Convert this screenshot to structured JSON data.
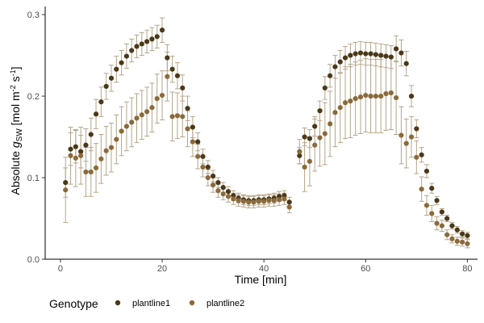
{
  "chart_data": {
    "type": "scatter",
    "xlabel": "Time [min]",
    "ylabel": {
      "prefix": "Absolute ",
      "symbol": "g",
      "symbol_sub": "SW",
      "unit_open": " [mol m",
      "exp1": "-2",
      "unit_mid": " s",
      "exp2": "-1",
      "unit_close": "]"
    },
    "xlim": [
      -3,
      82
    ],
    "ylim": [
      0,
      0.31
    ],
    "xticks": [
      0,
      20,
      40,
      60,
      80
    ],
    "yticks": [
      0.0,
      0.1,
      0.2,
      0.3
    ],
    "ytick_labels": [
      "0.0",
      "0.1",
      "0.2",
      "0.3"
    ],
    "grid": false,
    "legend": {
      "title": "Genotype",
      "placement": "bottom",
      "entries": [
        "plantline1",
        "plantline2"
      ]
    },
    "colors": {
      "plantline1": "#4a3818",
      "plantline2": "#8b6a3a",
      "errorbar": "#b5a589",
      "axis": "#000000"
    },
    "x": [
      1,
      2,
      3,
      4,
      5,
      6,
      7,
      8,
      9,
      10,
      11,
      12,
      13,
      14,
      15,
      16,
      17,
      18,
      19,
      20,
      21,
      22,
      23,
      24,
      25,
      26,
      27,
      28,
      29,
      30,
      31,
      32,
      33,
      34,
      35,
      36,
      37,
      38,
      39,
      40,
      41,
      42,
      43,
      44,
      45,
      46,
      47,
      48,
      49,
      50,
      51,
      52,
      53,
      54,
      55,
      56,
      57,
      58,
      59,
      60,
      61,
      62,
      63,
      64,
      65,
      66,
      67,
      68,
      69,
      70,
      71,
      72,
      73,
      74,
      75,
      76,
      77,
      78,
      79,
      80
    ],
    "series": [
      {
        "name": "plantline1",
        "y": [
          0.094,
          0.135,
          0.138,
          0.132,
          0.14,
          0.153,
          0.178,
          0.193,
          0.212,
          0.222,
          0.233,
          0.241,
          0.249,
          0.256,
          0.261,
          0.264,
          0.267,
          0.27,
          0.273,
          0.281,
          0.247,
          0.233,
          0.225,
          0.21,
          0.185,
          0.162,
          0.144,
          0.126,
          0.113,
          0.102,
          0.094,
          0.088,
          0.083,
          0.078,
          0.075,
          0.073,
          0.072,
          0.072,
          0.073,
          0.073,
          0.074,
          0.075,
          0.077,
          0.078,
          0.07,
          null,
          0.127,
          0.15,
          0.148,
          0.163,
          0.182,
          0.21,
          0.225,
          0.236,
          0.242,
          0.247,
          0.25,
          0.252,
          0.253,
          0.252,
          0.252,
          0.251,
          0.25,
          0.249,
          0.248,
          0.258,
          0.253,
          0.24,
          0.2,
          0.16,
          0.128,
          0.108,
          0.087,
          0.072,
          0.058,
          0.05,
          0.041,
          0.036,
          0.031,
          0.029
        ],
        "yerr": [
          0.018,
          0.02,
          0.02,
          0.02,
          0.02,
          0.02,
          0.018,
          0.018,
          0.016,
          0.016,
          0.016,
          0.015,
          0.015,
          0.014,
          0.014,
          0.014,
          0.014,
          0.014,
          0.014,
          0.015,
          0.016,
          0.016,
          0.016,
          0.016,
          0.015,
          0.013,
          0.011,
          0.009,
          0.008,
          0.007,
          0.006,
          0.006,
          0.006,
          0.006,
          0.006,
          0.006,
          0.006,
          0.006,
          0.006,
          0.006,
          0.006,
          0.006,
          0.006,
          0.006,
          0.006,
          null,
          0.01,
          0.011,
          0.011,
          0.012,
          0.012,
          0.014,
          0.014,
          0.014,
          0.014,
          0.014,
          0.014,
          0.014,
          0.014,
          0.014,
          0.014,
          0.014,
          0.014,
          0.014,
          0.014,
          0.016,
          0.016,
          0.015,
          0.013,
          0.011,
          0.009,
          0.008,
          0.006,
          0.005,
          0.004,
          0.004,
          0.004,
          0.004,
          0.004,
          0.004
        ]
      },
      {
        "name": "plantline2",
        "y": [
          0.085,
          0.127,
          0.124,
          0.127,
          0.107,
          0.107,
          0.112,
          0.123,
          0.133,
          0.137,
          0.147,
          0.157,
          0.163,
          0.168,
          0.173,
          0.177,
          0.181,
          0.186,
          0.197,
          0.201,
          0.224,
          0.175,
          0.176,
          0.175,
          0.16,
          0.144,
          0.126,
          0.113,
          0.1,
          0.091,
          0.084,
          0.08,
          0.077,
          0.074,
          0.072,
          0.071,
          0.07,
          0.07,
          0.071,
          0.071,
          0.072,
          0.072,
          0.073,
          0.074,
          0.064,
          null,
          0.132,
          0.113,
          0.12,
          0.14,
          0.149,
          0.154,
          0.166,
          0.18,
          0.186,
          0.192,
          0.194,
          0.197,
          0.199,
          0.201,
          0.2,
          0.2,
          0.2,
          0.203,
          0.204,
          0.198,
          0.152,
          0.142,
          0.15,
          0.125,
          0.086,
          0.066,
          0.056,
          0.044,
          0.041,
          0.03,
          0.025,
          0.022,
          0.021,
          0.019
        ],
        "yerr": [
          0.04,
          0.035,
          0.035,
          0.035,
          0.03,
          0.03,
          0.03,
          0.03,
          0.03,
          0.03,
          0.03,
          0.03,
          0.03,
          0.03,
          0.03,
          0.03,
          0.03,
          0.03,
          0.03,
          0.03,
          0.03,
          0.03,
          0.028,
          0.025,
          0.022,
          0.018,
          0.015,
          0.012,
          0.01,
          0.009,
          0.008,
          0.007,
          0.007,
          0.007,
          0.007,
          0.007,
          0.007,
          0.007,
          0.007,
          0.007,
          0.007,
          0.007,
          0.007,
          0.007,
          0.007,
          null,
          0.015,
          0.03,
          0.03,
          0.032,
          0.035,
          0.038,
          0.04,
          0.042,
          0.043,
          0.044,
          0.045,
          0.045,
          0.045,
          0.045,
          0.045,
          0.045,
          0.045,
          0.045,
          0.045,
          0.045,
          0.035,
          0.03,
          0.025,
          0.02,
          0.015,
          0.012,
          0.01,
          0.008,
          0.007,
          0.006,
          0.005,
          0.005,
          0.005,
          0.005
        ]
      }
    ]
  }
}
